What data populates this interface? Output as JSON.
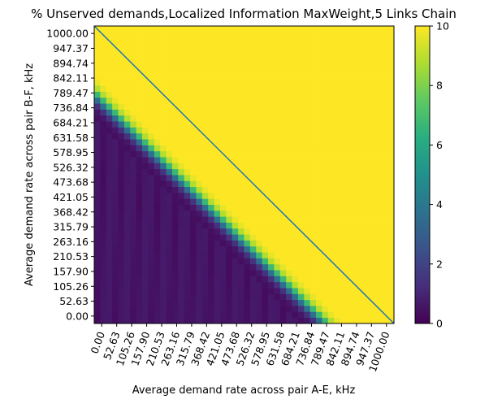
{
  "chart_data": {
    "type": "heatmap",
    "title": "% Unserved demands,Localized Information MaxWeight,5 Links Chain",
    "xlabel": "Average demand rate across pair A-E, kHz",
    "ylabel": "Average demand rate across pair B-F, kHz",
    "xlim": [
      0,
      1000
    ],
    "ylim": [
      0,
      1000
    ],
    "grid": false,
    "colormap": "viridis",
    "colorbar": {
      "min": 0,
      "max": 10,
      "ticks": [
        "0",
        "2",
        "4",
        "6",
        "8",
        "10"
      ]
    },
    "x_tick_labels": [
      "0.00",
      "52.63",
      "105.26",
      "157.90",
      "210.53",
      "263.16",
      "315.79",
      "368.42",
      "421.05",
      "473.68",
      "526.32",
      "578.95",
      "631.58",
      "684.21",
      "736.84",
      "789.47",
      "842.11",
      "894.74",
      "947.37",
      "1000.00"
    ],
    "y_tick_labels": [
      "0.00",
      "52.63",
      "105.26",
      "157.90",
      "210.53",
      "263.16",
      "315.79",
      "368.42",
      "421.05",
      "473.68",
      "526.32",
      "578.95",
      "631.58",
      "684.21",
      "736.84",
      "789.47",
      "842.11",
      "894.74",
      "947.37",
      "1000.00"
    ],
    "grid_size": 50,
    "transition_boundary_x_plus_y": 770,
    "low_value": 0.3,
    "high_value": 10,
    "reference_line": {
      "from": [
        0,
        1000
      ],
      "to": [
        1000,
        0
      ],
      "color": "#1f77b4"
    },
    "colors": {
      "low": "#440154",
      "high": "#fde725",
      "line": "#1f77b4"
    }
  }
}
